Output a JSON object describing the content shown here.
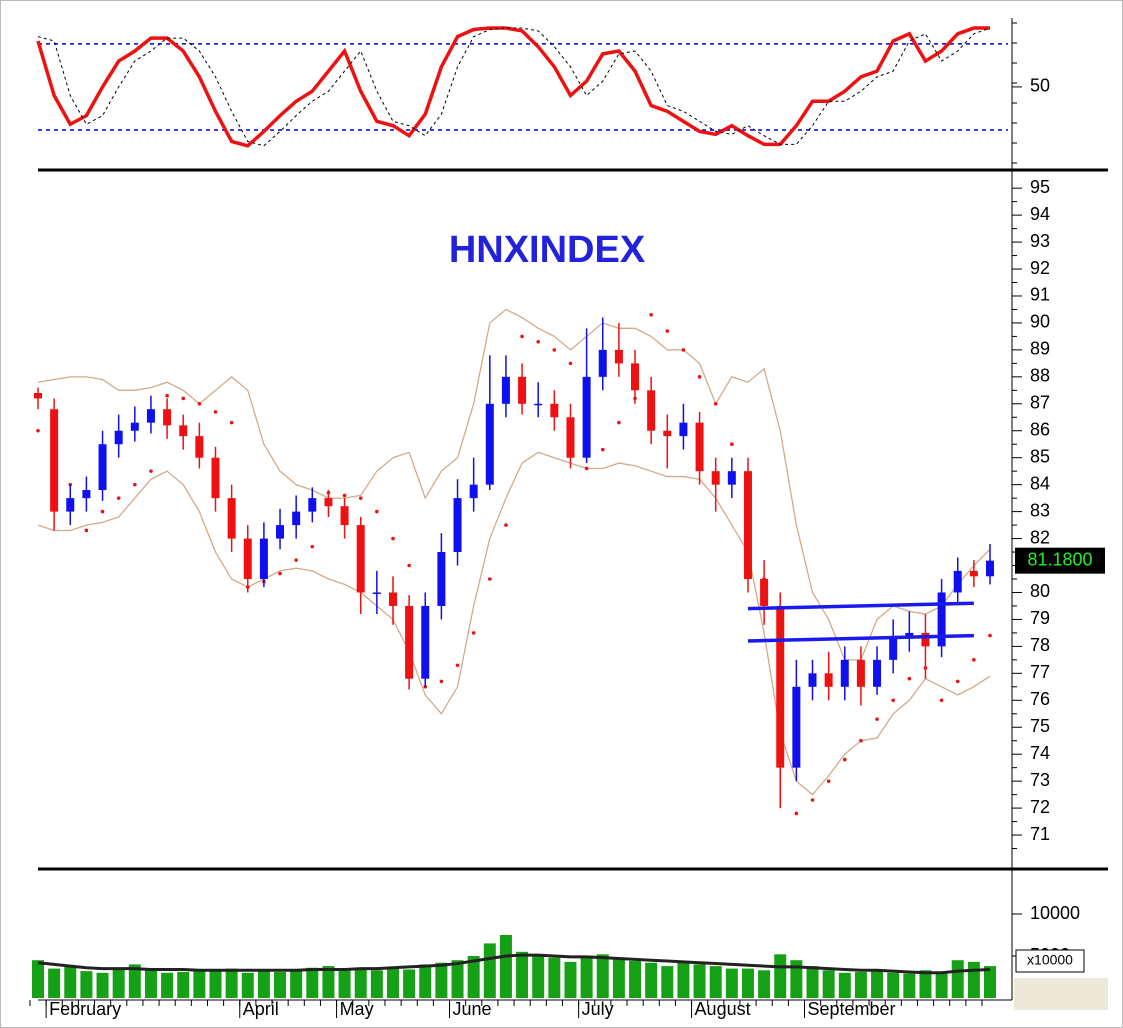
{
  "chart_data": [
    {
      "type": "line",
      "ylim": [
        -3,
        98
      ],
      "yticks": [
        50
      ],
      "hlines": [
        80,
        20
      ],
      "hline_color": "#0000cc",
      "series": [
        {
          "name": "osc",
          "color": "#ee1111",
          "values": [
            82,
            44,
            24,
            30,
            50,
            68,
            75,
            84,
            84,
            75,
            57,
            33,
            12,
            9,
            19,
            30,
            40,
            47,
            61,
            75,
            47,
            26,
            23,
            16,
            31,
            64,
            85,
            90,
            91,
            91,
            89,
            78,
            64,
            44,
            54,
            73,
            75,
            61,
            37,
            33,
            26,
            19,
            17,
            23,
            16,
            10,
            10,
            23,
            40,
            40,
            47,
            57,
            61,
            82,
            87,
            68,
            75,
            87,
            91,
            91
          ]
        },
        {
          "name": "signal",
          "color": "#000000",
          "values": [
            85,
            82,
            44,
            24,
            30,
            50,
            68,
            75,
            84,
            84,
            75,
            57,
            33,
            12,
            9,
            19,
            30,
            40,
            47,
            61,
            75,
            47,
            26,
            23,
            16,
            31,
            64,
            85,
            90,
            91,
            91,
            89,
            78,
            64,
            44,
            54,
            73,
            75,
            61,
            37,
            33,
            26,
            19,
            17,
            23,
            16,
            10,
            10,
            23,
            40,
            40,
            47,
            57,
            61,
            82,
            87,
            68,
            75,
            87,
            91
          ]
        }
      ]
    },
    {
      "type": "candlestick",
      "title": "HNXINDEX",
      "ylim": [
        70,
        95.6
      ],
      "yticks": [
        71,
        72,
        73,
        74,
        75,
        76,
        77,
        78,
        79,
        80,
        81,
        82,
        83,
        84,
        85,
        86,
        87,
        88,
        89,
        90,
        91,
        92,
        93,
        94,
        95
      ],
      "up_color": "#1010ee",
      "down_color": "#ee1111",
      "open": [
        87.4,
        86.8,
        83,
        83.5,
        83.8,
        85.5,
        86,
        86.3,
        86.8,
        86.2,
        85.8,
        85,
        83.5,
        82,
        80.5,
        82,
        82.5,
        83,
        83.5,
        83.2,
        82.5,
        80,
        80,
        79.5,
        76.8,
        79.5,
        81.5,
        83.5,
        84,
        87,
        88,
        87,
        87,
        86.5,
        85,
        88,
        89,
        88.5,
        87.5,
        86,
        85.8,
        86.3,
        84.5,
        84,
        84.5,
        80.5,
        79.5,
        73.5,
        76.5,
        77,
        76.5,
        77.5,
        76.5,
        77.5,
        78.3,
        78.5,
        78,
        80,
        80.8,
        80.6
      ],
      "high": [
        87.6,
        87.2,
        84,
        84.3,
        86,
        86.6,
        86.9,
        87.3,
        87.2,
        86.6,
        86.3,
        85.4,
        84,
        82.5,
        82.6,
        83.1,
        83.6,
        83.9,
        83.8,
        83.5,
        82.8,
        80.8,
        80.6,
        79.9,
        80,
        82.2,
        84.2,
        85,
        88.8,
        88.8,
        88.5,
        87.8,
        87.5,
        87,
        89.8,
        90.2,
        90,
        89,
        88,
        86.6,
        87,
        86.7,
        85,
        85,
        85,
        81.2,
        80,
        77.5,
        77.5,
        77.8,
        78,
        78,
        78,
        79,
        79.3,
        79.2,
        80.5,
        81.3,
        81.2,
        81.8
      ],
      "low": [
        86.8,
        82.3,
        82.5,
        83,
        83.4,
        85,
        85.6,
        85.9,
        85.7,
        85.3,
        84.6,
        83,
        81.5,
        80,
        80.2,
        81.6,
        82,
        82.6,
        82.8,
        82,
        79.2,
        79.2,
        78.8,
        76.4,
        76.5,
        79,
        81,
        83,
        83.8,
        86.5,
        86.6,
        86.5,
        86,
        84.6,
        84.8,
        87.5,
        88,
        87,
        85.5,
        84.6,
        85.3,
        84,
        83,
        83.5,
        80,
        78.8,
        72,
        73,
        76,
        76,
        76,
        75.8,
        76.2,
        77,
        77.8,
        76.8,
        77.6,
        79.6,
        80.2,
        80.3
      ],
      "close": [
        87.2,
        83,
        83.5,
        83.8,
        85.5,
        86,
        86.3,
        86.8,
        86.2,
        85.8,
        85,
        83.5,
        82,
        80.5,
        82,
        82.5,
        83,
        83.5,
        83.2,
        82.5,
        80,
        80,
        79.5,
        76.8,
        79.5,
        81.5,
        83.5,
        84,
        87,
        88,
        87,
        87,
        86.5,
        85,
        88,
        89,
        88.5,
        87.5,
        86,
        85.8,
        86.3,
        84.5,
        84,
        84.5,
        80.5,
        79.5,
        73.5,
        76.5,
        77,
        76.5,
        77.5,
        76.5,
        77.5,
        78.3,
        78.5,
        78,
        80,
        80.8,
        80.6,
        81.18
      ],
      "band_color": "#d4aa88",
      "upper_band": [
        87.8,
        87.9,
        88,
        88,
        87.9,
        87.5,
        87.5,
        87.6,
        87.8,
        87.5,
        87,
        87.5,
        88,
        87.5,
        85.5,
        84.5,
        84,
        83.8,
        83.5,
        83.5,
        83.6,
        84.5,
        85,
        85.2,
        83.5,
        84.5,
        85,
        87,
        90,
        90.5,
        90.2,
        89.8,
        89.5,
        89,
        89.5,
        90,
        89.8,
        89.8,
        89.5,
        89,
        89,
        88.5,
        87,
        88,
        87.8,
        88.3,
        86,
        82.5,
        80,
        79,
        77.5,
        77.5,
        79,
        79.5,
        79.3,
        79.2,
        79.5,
        80.3,
        81,
        81.6
      ],
      "lower_band": [
        82.5,
        82.3,
        82.3,
        82.5,
        82.6,
        82.8,
        83.5,
        84.2,
        84.5,
        84,
        83,
        81.5,
        80.5,
        80.2,
        80.5,
        80.8,
        80.9,
        80.8,
        80.5,
        80.3,
        80,
        79.5,
        79,
        77.8,
        76.2,
        75.5,
        76.5,
        79.5,
        82,
        83.5,
        84.8,
        85.2,
        85,
        84.8,
        84.6,
        84.6,
        84.8,
        84.7,
        84.5,
        84.3,
        84.3,
        84.2,
        83.5,
        82.5,
        81.5,
        78.5,
        74.8,
        73,
        72.5,
        73.2,
        74,
        74.5,
        74.6,
        75.5,
        76,
        76.8,
        76.5,
        76.2,
        76.5,
        76.9
      ],
      "sar_color": "#ee1111",
      "sar": [
        86,
        85,
        84,
        82.3,
        83,
        83.5,
        84,
        84.5,
        87.3,
        87.2,
        87,
        86.7,
        86.3,
        80.2,
        80.4,
        80.7,
        81.2,
        81.7,
        83.7,
        83.6,
        83.5,
        83,
        82,
        81,
        76.5,
        76.7,
        77.3,
        78.5,
        80.5,
        82.5,
        89.5,
        89.3,
        89,
        88.5,
        84.6,
        85.3,
        86.3,
        87.2,
        90.3,
        89.7,
        89,
        88,
        87,
        85.5,
        83,
        80.5,
        79,
        71.8,
        72.3,
        73,
        73.8,
        74.5,
        75.3,
        76,
        76.8,
        77.2,
        76,
        76.7,
        77.5,
        78.4
      ],
      "trend_color": "#1a1aee",
      "hlines": [
        {
          "from": 44,
          "to": 58,
          "y_start": 79.4,
          "y_end": 79.6
        },
        {
          "from": 44,
          "to": 58,
          "y_start": 78.2,
          "y_end": 78.4
        }
      ],
      "price_label": {
        "value": 81.18,
        "label": "81.1800"
      }
    },
    {
      "type": "bar",
      "categories": [
        null,
        "February",
        null,
        null,
        null,
        null,
        null,
        null,
        null,
        null,
        null,
        null,
        null,
        "April",
        null,
        null,
        null,
        null,
        null,
        "May",
        null,
        null,
        null,
        null,
        null,
        null,
        "June",
        null,
        null,
        null,
        null,
        null,
        null,
        null,
        "July",
        null,
        null,
        null,
        null,
        null,
        null,
        "August",
        null,
        null,
        null,
        null,
        null,
        null,
        "September",
        null,
        null,
        null,
        null,
        null,
        null,
        null,
        null,
        null,
        null,
        null
      ],
      "ylim": [
        0,
        15000
      ],
      "yticks": [
        5000,
        10000
      ],
      "unit_label": "x10000",
      "color": "#16a016",
      "values": [
        4500,
        3500,
        3800,
        3200,
        3000,
        3600,
        4000,
        3300,
        3000,
        3100,
        3400,
        3200,
        3500,
        3000,
        3200,
        3100,
        3300,
        3600,
        3800,
        3400,
        3500,
        3300,
        3600,
        3400,
        4000,
        4200,
        4500,
        5000,
        6500,
        7500,
        5500,
        5000,
        4800,
        4300,
        4800,
        5200,
        4600,
        4400,
        4200,
        3800,
        4200,
        4000,
        3800,
        3500,
        3500,
        3300,
        5200,
        4500,
        3800,
        3300,
        3000,
        3100,
        3400,
        3000,
        2900,
        3300,
        3100,
        4500,
        4300,
        3800
      ],
      "ma_color": "#222222",
      "ma": [
        4200,
        4000,
        3800,
        3600,
        3500,
        3500,
        3500,
        3400,
        3400,
        3400,
        3300,
        3300,
        3300,
        3300,
        3300,
        3300,
        3300,
        3400,
        3400,
        3400,
        3500,
        3500,
        3600,
        3700,
        3800,
        3900,
        4100,
        4400,
        4700,
        5000,
        5100,
        5100,
        5000,
        4900,
        4900,
        4800,
        4700,
        4600,
        4500,
        4400,
        4300,
        4200,
        4100,
        4000,
        3900,
        3800,
        3700,
        3700,
        3600,
        3500,
        3400,
        3300,
        3300,
        3200,
        3100,
        3000,
        3000,
        3200,
        3300,
        3400
      ]
    }
  ]
}
